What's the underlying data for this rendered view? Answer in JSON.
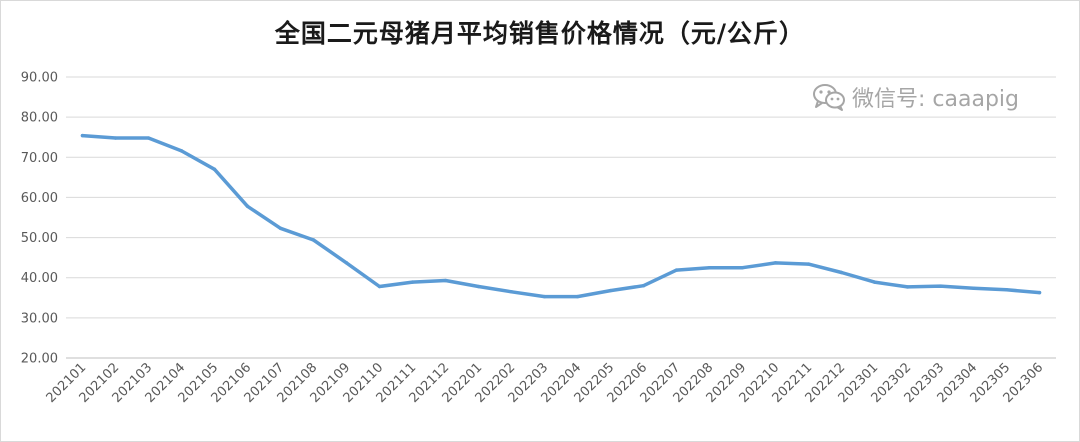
{
  "watermark": {
    "text": "微信号: caaapig",
    "icon": "wechat-icon"
  },
  "chart_data": {
    "type": "line",
    "title": "全国二元母猪月平均销售价格情况（元/公斤）",
    "xlabel": "",
    "ylabel": "",
    "ylim": [
      20,
      90
    ],
    "yticks": [
      "90.00",
      "80.00",
      "70.00",
      "60.00",
      "50.00",
      "40.00",
      "30.00",
      "20.00"
    ],
    "grid": true,
    "legend": "none",
    "color": "#5b9bd5",
    "categories": [
      "202101",
      "202102",
      "202103",
      "202104",
      "202105",
      "202106",
      "202107",
      "202108",
      "202109",
      "202110",
      "202111",
      "202112",
      "202201",
      "202202",
      "202203",
      "202204",
      "202205",
      "202206",
      "202207",
      "202208",
      "202209",
      "202210",
      "202211",
      "202212",
      "202301",
      "202302",
      "202303",
      "202304",
      "202305",
      "202306"
    ],
    "series": [
      {
        "values": [
          75.4,
          74.8,
          74.8,
          71.6,
          67.0,
          57.8,
          52.3,
          49.4,
          43.7,
          37.8,
          38.9,
          39.3,
          37.8,
          36.5,
          35.3,
          35.3,
          36.8,
          38.0,
          41.9,
          42.5,
          42.5,
          43.7,
          43.4,
          41.3,
          38.9,
          37.7,
          37.9,
          37.4,
          37.0,
          36.3
        ]
      }
    ]
  }
}
